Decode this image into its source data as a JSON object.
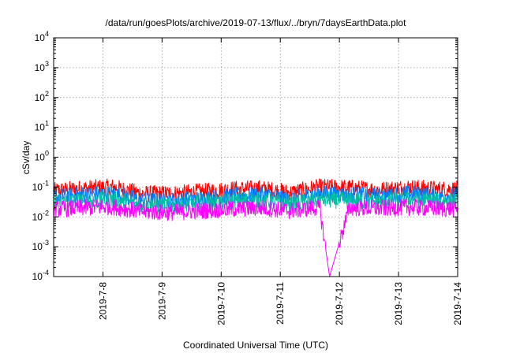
{
  "chart_data": {
    "type": "line",
    "title": "/data/run/goesPlots/archive/2019-07-13/flux/../bryn/7daysEarthData.plot",
    "xlabel": "Coordinated Universal Time (UTC)",
    "ylabel": "cSv/day",
    "y_scale": "log",
    "ylim": [
      0.0001,
      10000
    ],
    "y_ticks": [
      {
        "value": 0.0001,
        "base": "10",
        "exp": "-4"
      },
      {
        "value": 0.001,
        "base": "10",
        "exp": "-3"
      },
      {
        "value": 0.01,
        "base": "10",
        "exp": "-2"
      },
      {
        "value": 0.1,
        "base": "10",
        "exp": "-1"
      },
      {
        "value": 1,
        "base": "10",
        "exp": "0"
      },
      {
        "value": 10,
        "base": "10",
        "exp": "1"
      },
      {
        "value": 100,
        "base": "10",
        "exp": "2"
      },
      {
        "value": 1000,
        "base": "10",
        "exp": "3"
      },
      {
        "value": 10000,
        "base": "10",
        "exp": "4"
      }
    ],
    "xlim": [
      "2019-07-07 04:00",
      "2019-07-14 00:00"
    ],
    "x_ticks": [
      "2019-7-8",
      "2019-7-9",
      "2019-7-10",
      "2019-7-11",
      "2019-7-12",
      "2019-7-13",
      "2019-7-14"
    ],
    "grid": true,
    "legend": "none",
    "series": [
      {
        "color": "#ff0000",
        "x": [
          "2019-07-07 04:00",
          "2019-07-07 16:00",
          "2019-07-08 04:00",
          "2019-07-08 16:00",
          "2019-07-09 04:00",
          "2019-07-09 16:00",
          "2019-07-10 04:00",
          "2019-07-10 16:00",
          "2019-07-11 04:00",
          "2019-07-11 16:00",
          "2019-07-12 04:00",
          "2019-07-12 16:00",
          "2019-07-13 04:00",
          "2019-07-13 16:00",
          "2019-07-14 00:00"
        ],
        "values": [
          0.075,
          0.09,
          0.1,
          0.06,
          0.06,
          0.07,
          0.085,
          0.09,
          0.065,
          0.1,
          0.095,
          0.08,
          0.1,
          0.085,
          0.085
        ]
      },
      {
        "color": "#0080ff",
        "x": [
          "2019-07-07 04:00",
          "2019-07-07 16:00",
          "2019-07-08 04:00",
          "2019-07-08 16:00",
          "2019-07-09 04:00",
          "2019-07-09 16:00",
          "2019-07-10 04:00",
          "2019-07-10 16:00",
          "2019-07-11 04:00",
          "2019-07-11 16:00",
          "2019-07-12 04:00",
          "2019-07-12 16:00",
          "2019-07-13 04:00",
          "2019-07-13 16:00",
          "2019-07-14 00:00"
        ],
        "values": [
          0.045,
          0.055,
          0.06,
          0.035,
          0.035,
          0.04,
          0.05,
          0.055,
          0.04,
          0.06,
          0.055,
          0.05,
          0.06,
          0.05,
          0.05
        ]
      },
      {
        "color": "#00c0a0",
        "x": [
          "2019-07-07 04:00",
          "2019-07-07 16:00",
          "2019-07-08 04:00",
          "2019-07-08 16:00",
          "2019-07-09 04:00",
          "2019-07-09 16:00",
          "2019-07-10 04:00",
          "2019-07-10 16:00",
          "2019-07-11 04:00",
          "2019-07-11 16:00",
          "2019-07-12 04:00",
          "2019-07-12 16:00",
          "2019-07-13 04:00",
          "2019-07-13 16:00",
          "2019-07-14 00:00"
        ],
        "values": [
          0.03,
          0.035,
          0.038,
          0.025,
          0.025,
          0.028,
          0.033,
          0.035,
          0.027,
          0.038,
          0.035,
          0.032,
          0.038,
          0.033,
          0.033
        ]
      },
      {
        "color": "#ff00ff",
        "x": [
          "2019-07-07 04:00",
          "2019-07-07 16:00",
          "2019-07-08 04:00",
          "2019-07-08 16:00",
          "2019-07-09 04:00",
          "2019-07-09 16:00",
          "2019-07-10 04:00",
          "2019-07-10 16:00",
          "2019-07-11 04:00",
          "2019-07-11 16:00",
          "2019-07-11 20:00",
          "2019-07-12 04:00",
          "2019-07-12 16:00",
          "2019-07-13 04:00",
          "2019-07-13 16:00",
          "2019-07-14 00:00"
        ],
        "values": [
          0.018,
          0.02,
          0.022,
          0.015,
          0.014,
          0.016,
          0.018,
          0.02,
          0.016,
          0.021,
          0.0001,
          0.02,
          0.019,
          0.021,
          0.019,
          0.019
        ]
      }
    ]
  }
}
